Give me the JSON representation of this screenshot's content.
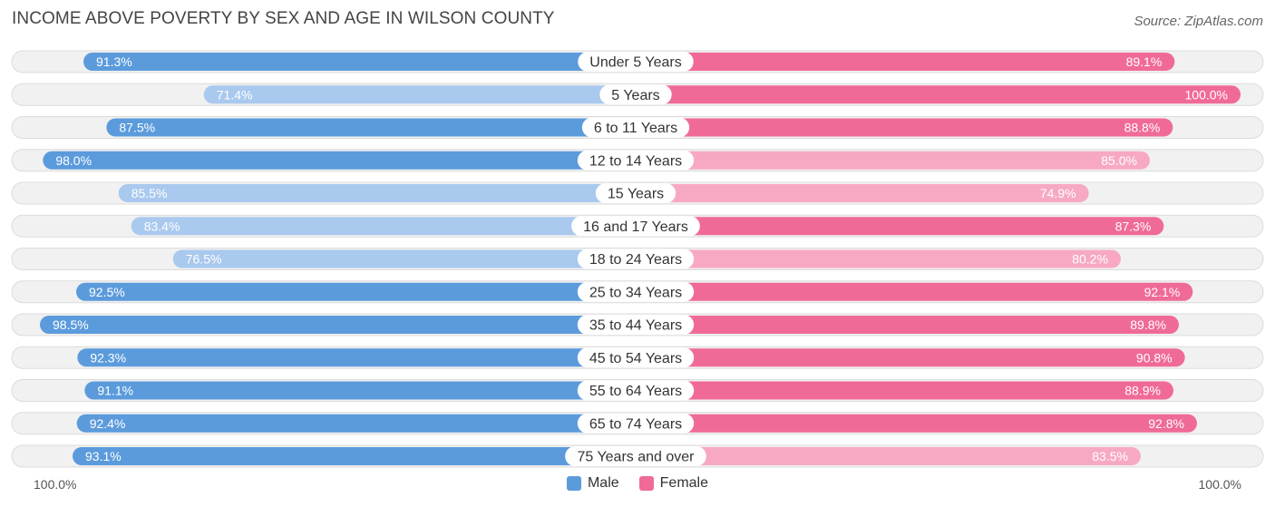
{
  "title": "INCOME ABOVE POVERTY BY SEX AND AGE IN WILSON COUNTY",
  "source": "Source: ZipAtlas.com",
  "axis": {
    "left_label": "100.0%",
    "right_label": "100.0%"
  },
  "legend": {
    "male": "Male",
    "female": "Female"
  },
  "colors": {
    "male_strong": "#5b9bdc",
    "male_light": "#a9c9ee",
    "female_strong": "#f06a98",
    "female_light": "#f7a9c4"
  },
  "chart_data": {
    "type": "bar",
    "orientation": "horizontal-diverging",
    "title": "INCOME ABOVE POVERTY BY SEX AND AGE IN WILSON COUNTY",
    "xlim": [
      0,
      100
    ],
    "categories": [
      "Under 5 Years",
      "5 Years",
      "6 to 11 Years",
      "12 to 14 Years",
      "15 Years",
      "16 and 17 Years",
      "18 to 24 Years",
      "25 to 34 Years",
      "35 to 44 Years",
      "45 to 54 Years",
      "55 to 64 Years",
      "65 to 74 Years",
      "75 Years and over"
    ],
    "series": [
      {
        "name": "Male",
        "values": [
          91.3,
          71.4,
          87.5,
          98.0,
          85.5,
          83.4,
          76.5,
          92.5,
          98.5,
          92.3,
          91.1,
          92.4,
          93.1
        ],
        "labels": [
          "91.3%",
          "71.4%",
          "87.5%",
          "98.0%",
          "85.5%",
          "83.4%",
          "76.5%",
          "92.5%",
          "98.5%",
          "92.3%",
          "91.1%",
          "92.4%",
          "93.1%"
        ]
      },
      {
        "name": "Female",
        "values": [
          89.1,
          100.0,
          88.8,
          85.0,
          74.9,
          87.3,
          80.2,
          92.1,
          89.8,
          90.8,
          88.9,
          92.8,
          83.5
        ],
        "labels": [
          "89.1%",
          "100.0%",
          "88.8%",
          "85.0%",
          "74.9%",
          "87.3%",
          "80.2%",
          "92.1%",
          "89.8%",
          "90.8%",
          "88.9%",
          "92.8%",
          "83.5%"
        ]
      }
    ]
  }
}
